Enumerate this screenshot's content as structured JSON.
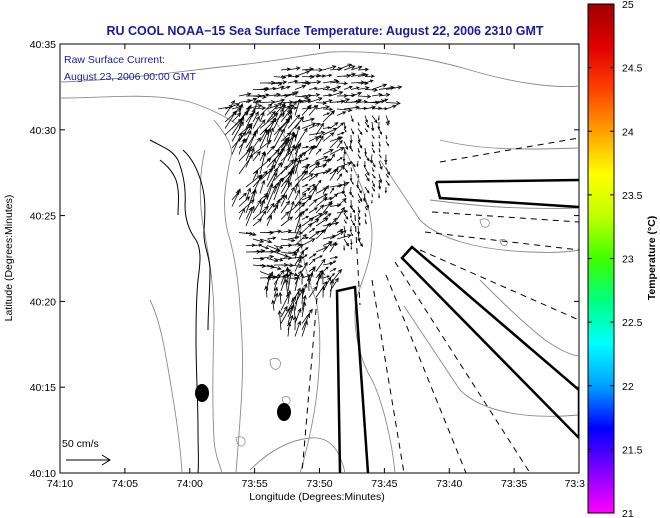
{
  "title": "RU COOL  NOAA−15  Sea Surface Temperature:  August 22, 2006 2310 GMT",
  "annotation": {
    "line1": "Raw Surface Current:",
    "line2": "August 23, 2006 00:00 GMT"
  },
  "scale_label": "50 cm/s",
  "x_axis": {
    "label": "Longitude (Degrees:Minutes)",
    "ticks": [
      "74:10",
      "74:05",
      "74:00",
      "73:55",
      "73:50",
      "73:45",
      "73:40",
      "73:35",
      "73:3"
    ]
  },
  "y_axis": {
    "label": "Latitude (Degrees:Minutes)",
    "ticks": [
      "40:35",
      "40:30",
      "40:25",
      "40:20",
      "40:15",
      "40:10"
    ]
  },
  "colorbar": {
    "label": "Temperature (°C)",
    "ticks": [
      "25",
      "24.5",
      "24",
      "23.5",
      "23",
      "22.5",
      "22",
      "21.5",
      "21"
    ],
    "colors": [
      "#ff00ff",
      "#8000ff",
      "#0000ff",
      "#00a0ff",
      "#00ffff",
      "#00ff80",
      "#40ff00",
      "#c0ff00",
      "#ffff00",
      "#ffa000",
      "#ff4000",
      "#e00000",
      "#a00000"
    ]
  }
}
